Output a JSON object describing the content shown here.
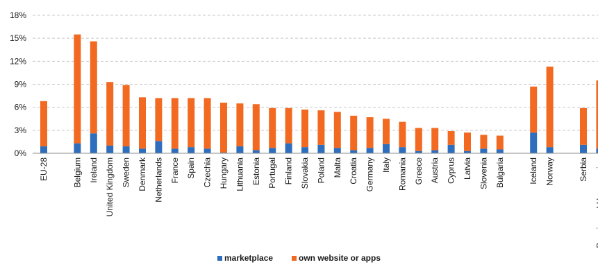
{
  "chart_data": {
    "type": "bar",
    "stacked": true,
    "categories": [
      "EU-28",
      "Belgium",
      "Ireland",
      "United Kingdom",
      "Sweden",
      "Denmark",
      "Netherlands",
      "France",
      "Spain",
      "Czechia",
      "Hungary",
      "Lithuania",
      "Estonia",
      "Portugal",
      "Finland",
      "Slovakia",
      "Poland",
      "Malta",
      "Croatia",
      "Germany",
      "Italy",
      "Romania",
      "Greece",
      "Austria",
      "Cyprus",
      "Latvia",
      "Slovenia",
      "Bulgaria",
      "Iceland",
      "Norway",
      "Serbia",
      "Bosnia and Herzegovina"
    ],
    "groups": [
      [
        0
      ],
      [
        1,
        27
      ],
      [
        28,
        29
      ],
      [
        30,
        31
      ]
    ],
    "series": [
      {
        "name": "marketplace",
        "color": "#2e6ebd",
        "values": [
          0.9,
          1.3,
          2.6,
          1.0,
          0.9,
          0.6,
          1.6,
          0.6,
          0.8,
          0.6,
          0.1,
          0.9,
          0.4,
          0.7,
          1.3,
          0.8,
          1.1,
          0.7,
          0.4,
          0.7,
          1.2,
          0.8,
          0.3,
          0.4,
          1.1,
          0.3,
          0.6,
          0.5,
          2.7,
          0.8,
          1.1,
          0.6
        ]
      },
      {
        "name": "own website or apps",
        "color": "#f26a21",
        "values": [
          5.9,
          14.2,
          12.0,
          8.3,
          8.0,
          6.7,
          5.6,
          6.6,
          6.4,
          6.6,
          6.5,
          5.6,
          6.0,
          5.2,
          4.6,
          4.9,
          4.5,
          4.7,
          4.5,
          4.0,
          3.3,
          3.3,
          3.0,
          2.9,
          1.8,
          2.4,
          1.8,
          1.8,
          6.0,
          10.5,
          4.8,
          8.9
        ]
      }
    ],
    "y_ticks": [
      "0%",
      "3%",
      "6%",
      "9%",
      "12%",
      "15%",
      "18%"
    ],
    "ylim": [
      0,
      18
    ],
    "y_unit": "%",
    "grid": true,
    "legend_position": "bottom-center"
  }
}
